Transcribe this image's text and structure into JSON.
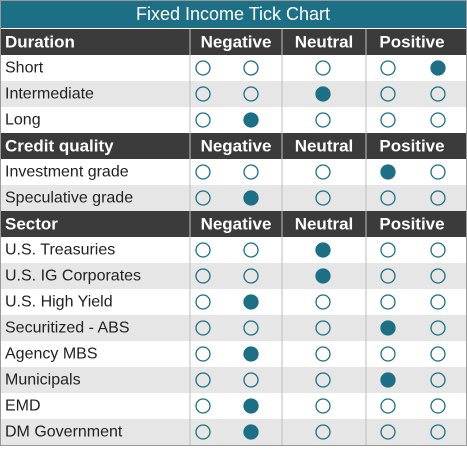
{
  "title": "Fixed Income Tick Chart",
  "sections": [
    {
      "header": "Duration",
      "columns": [
        "Negative",
        "Neutral",
        "Positive"
      ],
      "rows": [
        {
          "label": "Short",
          "position": 4
        },
        {
          "label": "Intermediate",
          "position": 2
        },
        {
          "label": "Long",
          "position": 1
        }
      ]
    },
    {
      "header": "Credit quality",
      "columns": [
        "Negative",
        "Neutral",
        "Positive"
      ],
      "rows": [
        {
          "label": "Investment grade",
          "position": 3
        },
        {
          "label": "Speculative grade",
          "position": 1
        }
      ]
    },
    {
      "header": "Sector",
      "columns": [
        "Negative",
        "Neutral",
        "Positive"
      ],
      "rows": [
        {
          "label": "U.S. Treasuries",
          "position": 2
        },
        {
          "label": "U.S. IG Corporates",
          "position": 2
        },
        {
          "label": "U.S. High Yield",
          "position": 1
        },
        {
          "label": "Securitized - ABS",
          "position": 3
        },
        {
          "label": "Agency MBS",
          "position": 1
        },
        {
          "label": "Municipals",
          "position": 3
        },
        {
          "label": "EMD",
          "position": 1
        },
        {
          "label": "DM Government",
          "position": 1
        }
      ]
    }
  ]
}
